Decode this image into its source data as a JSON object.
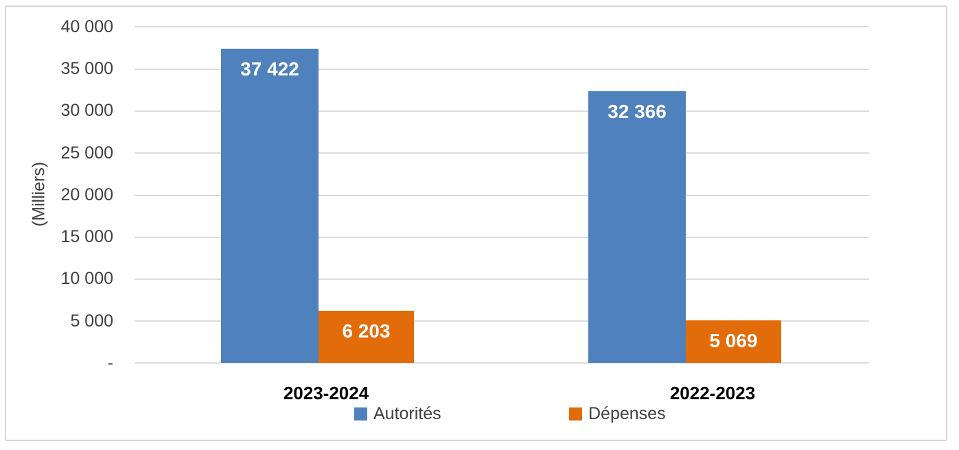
{
  "chart_data": {
    "type": "bar",
    "title": "",
    "categories": [
      "2023-2024",
      "2022-2023"
    ],
    "series": [
      {
        "name": "Autorités",
        "color": "#4F81BD",
        "values": [
          37422,
          32366
        ],
        "data_labels": [
          "37 422",
          "32 366"
        ]
      },
      {
        "name": "Dépenses",
        "color": "#E36C0A",
        "values": [
          6203,
          5069
        ],
        "data_labels": [
          "6 203",
          "5 069"
        ]
      }
    ],
    "ylabel": "(Milliers)",
    "ylim": [
      0,
      40000
    ],
    "ytick_interval": 5000,
    "y_tick_labels": [
      "40 000",
      "35 000",
      "30 000",
      "25 000",
      "20 000",
      "15 000",
      "10 000",
      "5 000",
      "-"
    ],
    "grid": true,
    "legend_position": "bottom",
    "gridline_color": "#DCDCDC",
    "frame_border_color": "#D6D6D6",
    "data_label_color": "#FFFFFF"
  }
}
